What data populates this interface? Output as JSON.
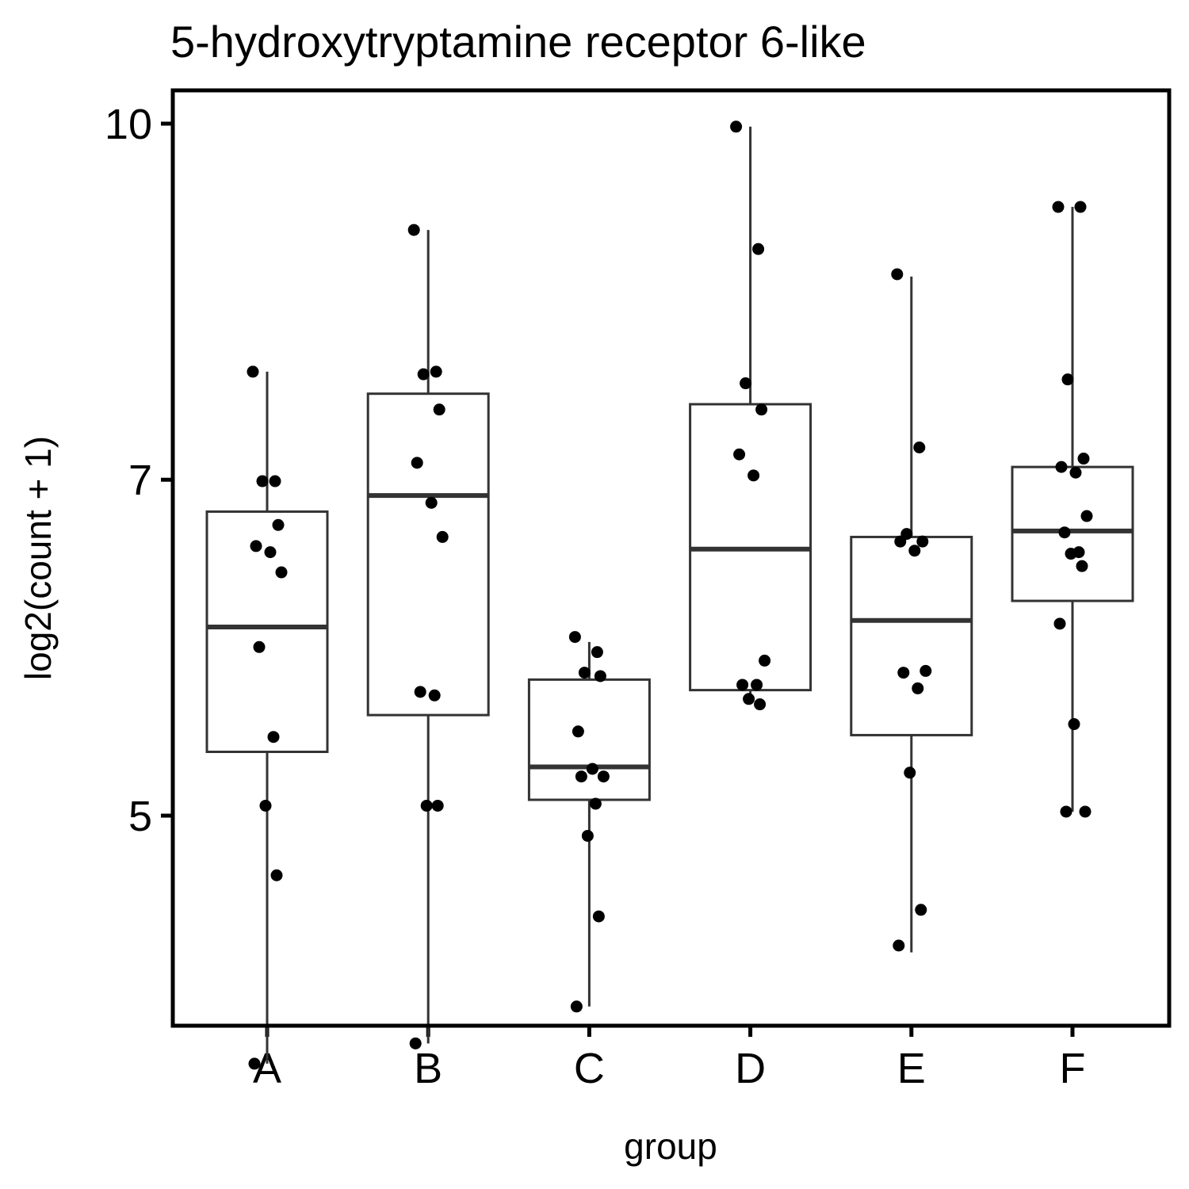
{
  "chart_data": {
    "type": "boxplot",
    "title": "5-hydroxytryptamine receptor 6-like",
    "xlabel": "group",
    "ylabel": "log2(count + 1)",
    "y_scale": "log",
    "y_ticks": [
      5,
      7,
      10
    ],
    "ylim": [
      3.8,
      10.3
    ],
    "grid": false,
    "legend": "none",
    "categories": [
      "A",
      "B",
      "C",
      "D",
      "E",
      "F"
    ],
    "boxes": [
      {
        "group": "A",
        "lower_whisker": 3.9,
        "q1": 5.33,
        "median": 6.04,
        "q3": 6.78,
        "upper_whisker": 7.8
      },
      {
        "group": "B",
        "lower_whisker": 3.98,
        "q1": 5.53,
        "median": 6.89,
        "q3": 7.63,
        "upper_whisker": 8.99
      },
      {
        "group": "C",
        "lower_whisker": 4.13,
        "q1": 5.08,
        "median": 5.25,
        "q3": 5.73,
        "upper_whisker": 5.95
      },
      {
        "group": "D",
        "lower_whisker": 5.61,
        "q1": 5.67,
        "median": 6.53,
        "q3": 7.55,
        "upper_whisker": 9.97
      },
      {
        "group": "E",
        "lower_whisker": 4.36,
        "q1": 5.42,
        "median": 6.08,
        "q3": 6.61,
        "upper_whisker": 8.58
      },
      {
        "group": "F",
        "lower_whisker": 5.02,
        "q1": 6.2,
        "median": 6.65,
        "q3": 7.09,
        "upper_whisker": 9.2
      }
    ],
    "points": [
      {
        "group": "A",
        "values": [
          7.8,
          6.99,
          6.99,
          6.69,
          6.55,
          6.51,
          6.38,
          5.92,
          5.41,
          5.05,
          4.71,
          3.9
        ]
      },
      {
        "group": "B",
        "values": [
          8.99,
          7.8,
          7.78,
          7.51,
          7.12,
          6.84,
          6.61,
          5.66,
          5.64,
          5.05,
          5.05,
          3.98
        ]
      },
      {
        "group": "C",
        "values": [
          5.98,
          5.89,
          5.77,
          5.75,
          5.44,
          5.24,
          5.2,
          5.2,
          5.06,
          4.9,
          4.52,
          4.13
        ]
      },
      {
        "group": "D",
        "values": [
          9.97,
          8.82,
          7.71,
          7.51,
          7.18,
          7.03,
          5.84,
          5.7,
          5.7,
          5.62,
          5.59
        ]
      },
      {
        "group": "E",
        "values": [
          8.6,
          7.23,
          6.63,
          6.58,
          6.58,
          6.52,
          5.78,
          5.77,
          5.68,
          5.22,
          4.55,
          4.39
        ]
      },
      {
        "group": "F",
        "values": [
          9.2,
          9.2,
          7.74,
          7.15,
          7.09,
          7.05,
          6.75,
          6.64,
          6.51,
          6.5,
          6.42,
          6.06,
          5.48,
          5.02,
          5.02
        ]
      }
    ]
  }
}
